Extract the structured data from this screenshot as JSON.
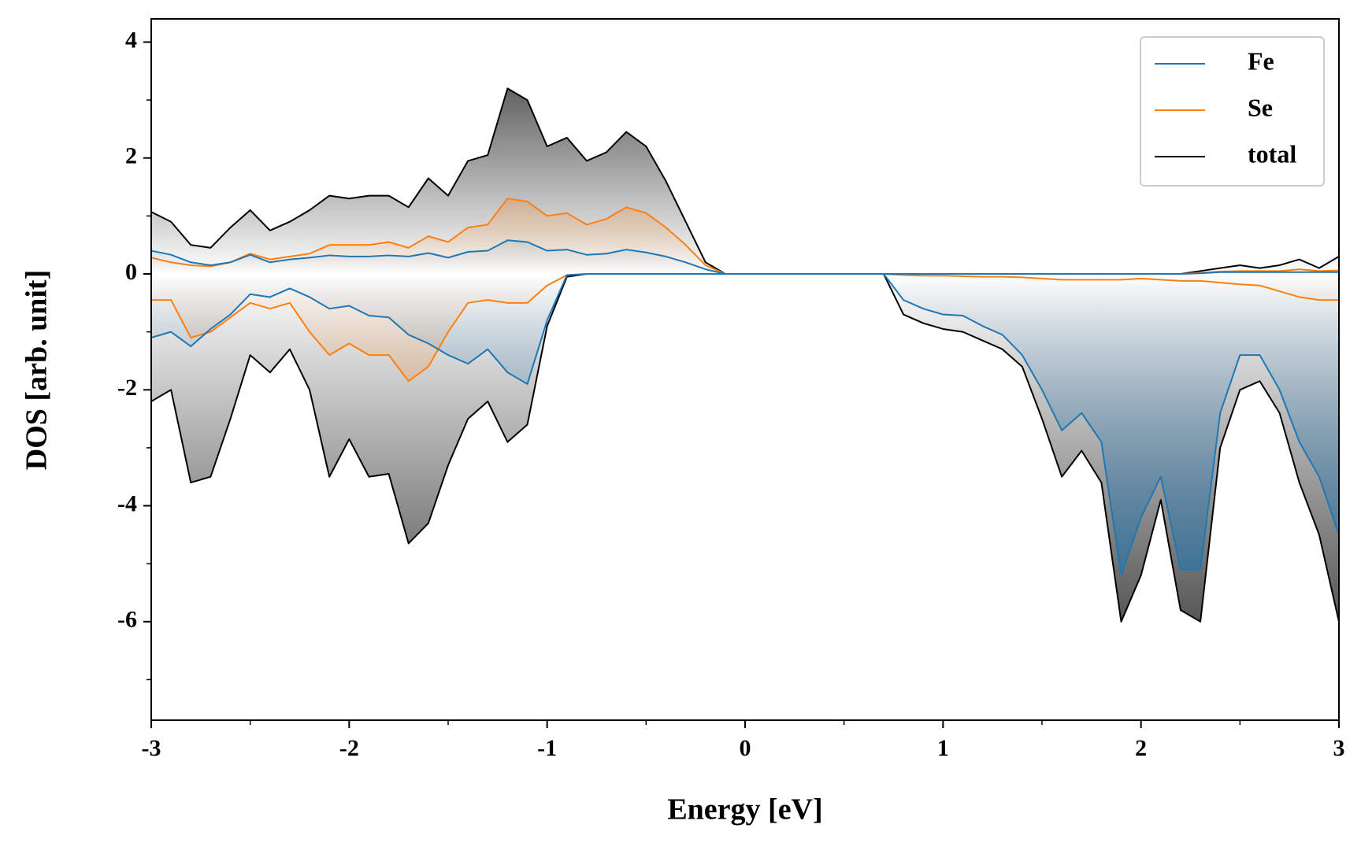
{
  "chart_data": {
    "type": "line",
    "xlabel": "Energy [eV]",
    "ylabel": "DOS [arb. unit]",
    "x": [
      -3.0,
      -2.9,
      -2.8,
      -2.7,
      -2.6,
      -2.5,
      -2.4,
      -2.3,
      -2.2,
      -2.1,
      -2.0,
      -1.9,
      -1.8,
      -1.7,
      -1.6,
      -1.5,
      -1.4,
      -1.3,
      -1.2,
      -1.1,
      -1.0,
      -0.9,
      -0.8,
      -0.7,
      -0.6,
      -0.5,
      -0.4,
      -0.3,
      -0.2,
      -0.1,
      0.0,
      0.1,
      0.2,
      0.3,
      0.4,
      0.5,
      0.6,
      0.7,
      0.8,
      0.9,
      1.0,
      1.1,
      1.2,
      1.3,
      1.4,
      1.5,
      1.6,
      1.7,
      1.8,
      1.9,
      2.0,
      2.1,
      2.2,
      2.3,
      2.4,
      2.5,
      2.6,
      2.7,
      2.8,
      2.9,
      3.0
    ],
    "series": [
      {
        "name": "Fe",
        "color": "#1f77b4",
        "up": [
          0.4,
          0.33,
          0.2,
          0.15,
          0.2,
          0.33,
          0.2,
          0.25,
          0.28,
          0.32,
          0.3,
          0.3,
          0.32,
          0.3,
          0.36,
          0.28,
          0.38,
          0.4,
          0.58,
          0.55,
          0.4,
          0.42,
          0.33,
          0.35,
          0.42,
          0.37,
          0.3,
          0.2,
          0.08,
          0,
          0,
          0,
          0,
          0,
          0,
          0,
          0,
          0,
          0,
          0,
          0,
          0,
          0,
          0,
          0,
          0,
          0,
          0,
          0,
          0,
          0,
          0,
          0,
          0.01,
          0.03,
          0.03,
          0.03,
          0.03,
          0.03,
          0.03,
          0.03
        ],
        "down": [
          -1.1,
          -1.0,
          -1.25,
          -0.95,
          -0.7,
          -0.35,
          -0.4,
          -0.25,
          -0.4,
          -0.6,
          -0.55,
          -0.72,
          -0.75,
          -1.05,
          -1.2,
          -1.4,
          -1.55,
          -1.3,
          -1.7,
          -1.9,
          -0.8,
          -0.02,
          0,
          0,
          0,
          0,
          0,
          0,
          0,
          0,
          0,
          0,
          0,
          0,
          0,
          0,
          0,
          0,
          -0.45,
          -0.6,
          -0.7,
          -0.72,
          -0.9,
          -1.05,
          -1.4,
          -2.0,
          -2.7,
          -2.4,
          -2.9,
          -5.2,
          -4.2,
          -3.5,
          -5.1,
          -5.1,
          -2.4,
          -1.4,
          -1.4,
          -2.0,
          -2.9,
          -3.5,
          -4.5
        ]
      },
      {
        "name": "Se",
        "color": "#ff7f0e",
        "up": [
          0.28,
          0.2,
          0.15,
          0.13,
          0.2,
          0.35,
          0.25,
          0.3,
          0.35,
          0.5,
          0.5,
          0.5,
          0.55,
          0.45,
          0.65,
          0.55,
          0.8,
          0.85,
          1.3,
          1.25,
          1.0,
          1.05,
          0.85,
          0.95,
          1.15,
          1.05,
          0.8,
          0.5,
          0.15,
          0,
          0,
          0,
          0,
          0,
          0,
          0,
          0,
          0,
          0,
          0,
          0,
          0,
          0,
          0,
          0,
          0,
          0,
          0,
          0,
          0,
          0,
          0,
          0,
          0.02,
          0.04,
          0.05,
          0.05,
          0.05,
          0.08,
          0.05,
          0.06
        ],
        "down": [
          -0.45,
          -0.45,
          -1.1,
          -1.0,
          -0.75,
          -0.5,
          -0.6,
          -0.5,
          -1.0,
          -1.4,
          -1.2,
          -1.4,
          -1.4,
          -1.85,
          -1.6,
          -1.0,
          -0.5,
          -0.45,
          -0.5,
          -0.5,
          -0.2,
          -0.02,
          0,
          0,
          0,
          0,
          0,
          0,
          0,
          0,
          0,
          0,
          0,
          0,
          0,
          0,
          0,
          0,
          -0.02,
          -0.03,
          -0.03,
          -0.04,
          -0.05,
          -0.05,
          -0.06,
          -0.08,
          -0.1,
          -0.1,
          -0.1,
          -0.1,
          -0.08,
          -0.1,
          -0.12,
          -0.12,
          -0.15,
          -0.18,
          -0.2,
          -0.3,
          -0.4,
          -0.45,
          -0.45
        ]
      },
      {
        "name": "total",
        "color": "#000000",
        "up": [
          1.07,
          0.9,
          0.5,
          0.45,
          0.8,
          1.1,
          0.75,
          0.9,
          1.1,
          1.35,
          1.3,
          1.35,
          1.35,
          1.15,
          1.65,
          1.35,
          1.95,
          2.05,
          3.2,
          3.0,
          2.2,
          2.35,
          1.95,
          2.1,
          2.45,
          2.2,
          1.6,
          0.9,
          0.2,
          0,
          0,
          0,
          0,
          0,
          0,
          0,
          0,
          0,
          0,
          0,
          0,
          0,
          0,
          0,
          0,
          0,
          0,
          0,
          0,
          0,
          0,
          0,
          0,
          0.05,
          0.1,
          0.15,
          0.1,
          0.15,
          0.25,
          0.1,
          0.3
        ],
        "down": [
          -2.2,
          -2.0,
          -3.6,
          -3.5,
          -2.5,
          -1.4,
          -1.7,
          -1.3,
          -2.0,
          -3.5,
          -2.85,
          -3.5,
          -3.45,
          -4.65,
          -4.3,
          -3.3,
          -2.5,
          -2.2,
          -2.9,
          -2.6,
          -0.9,
          -0.05,
          0,
          0,
          0,
          0,
          0,
          0,
          0,
          0,
          0,
          0,
          0,
          0,
          0,
          0,
          0,
          0,
          -0.7,
          -0.85,
          -0.95,
          -1.0,
          -1.15,
          -1.3,
          -1.6,
          -2.5,
          -3.5,
          -3.05,
          -3.6,
          -6.0,
          -5.2,
          -3.9,
          -5.8,
          -6.0,
          -3.0,
          -2.0,
          -1.85,
          -2.4,
          -3.6,
          -4.5,
          -6.0
        ]
      }
    ],
    "xlim": [
      -3,
      3
    ],
    "xticks": [
      -3,
      -2,
      -1,
      0,
      1,
      2,
      3
    ],
    "x_minor_ticks": [
      -2.5,
      -1.5,
      -0.5,
      0.5,
      1.5,
      2.5
    ],
    "ylim": [
      -7.7,
      4.4
    ],
    "yticks": [
      -6,
      -4,
      -2,
      0,
      2,
      4
    ],
    "y_minor_ticks": [
      -7,
      -5,
      -3,
      -1,
      1,
      3
    ],
    "legend": "upper right"
  }
}
